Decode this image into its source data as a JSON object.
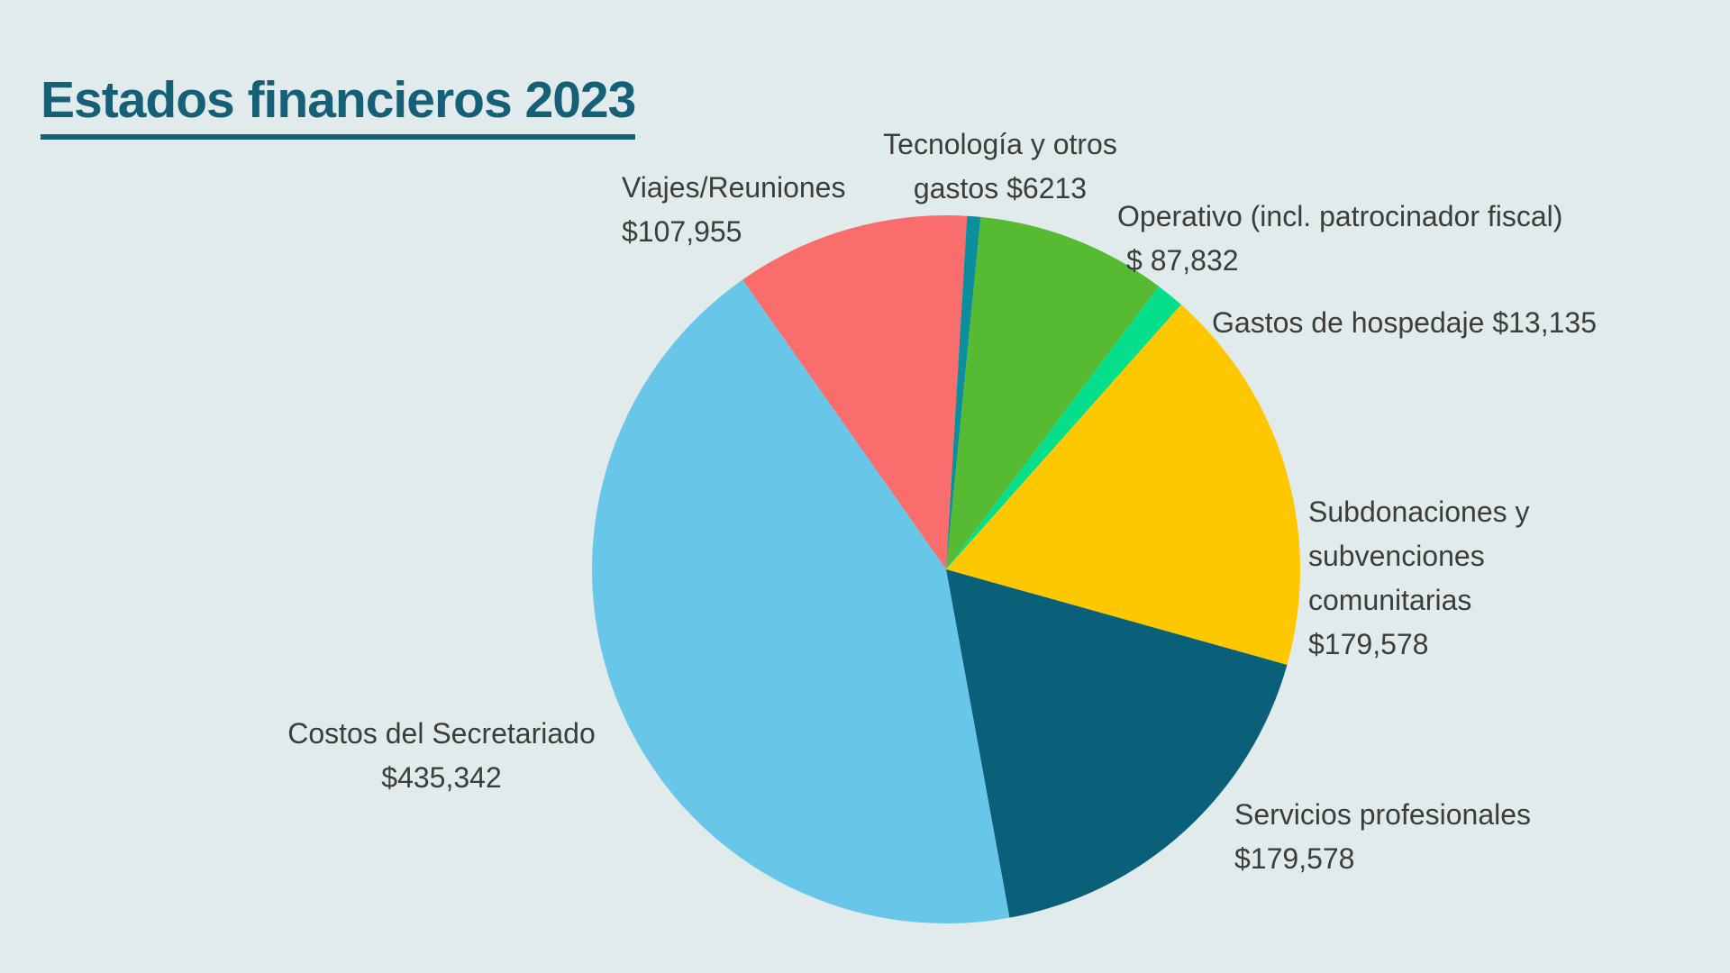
{
  "page": {
    "background_color": "#E1EBEC",
    "text_color": "#3C3C3C",
    "title_color": "#166077"
  },
  "header": {
    "title": "Estados financieros 2023"
  },
  "chart_data": {
    "type": "pie",
    "title": "Estados financieros 2023",
    "legend_position": "none",
    "labels_position": "outside",
    "total": 1009633,
    "start_angle_deg": -35.1,
    "direction": "clockwise",
    "slices": [
      {
        "id": "viajes-reuniones",
        "name": "Viajes/Reuniones",
        "value": 107955,
        "display_value": "$107,955",
        "percent": 10.69,
        "color": "#F96D6D",
        "label_lines": [
          "Viajes/Reuniones",
          "$107,955"
        ]
      },
      {
        "id": "tecnologia-otros-gastos",
        "name": "Tecnología y otros gastos",
        "value": 6213,
        "display_value": "$6213",
        "percent": 0.62,
        "color": "#0D8E9C",
        "label_lines": [
          "Tecnología y otros",
          "gastos $6213"
        ]
      },
      {
        "id": "operativo",
        "name": "Operativo (incl. patrocinador fiscal)",
        "value": 87832,
        "display_value": "$ 87,832",
        "percent": 8.7,
        "color": "#56BA32",
        "label_lines": [
          "Operativo (incl. patrocinador fiscal)",
          "$ 87,832"
        ]
      },
      {
        "id": "gastos-hospedaje",
        "name": "Gastos de hospedaje",
        "value": 13135,
        "display_value": "$13,135",
        "percent": 1.3,
        "color": "#05DF8B",
        "label_lines": [
          "Gastos de hospedaje $13,135"
        ]
      },
      {
        "id": "subdonaciones",
        "name": "Subdonaciones y subvenciones comunitarias",
        "value": 179578,
        "display_value": "$179,578",
        "percent": 17.79,
        "color": "#FDC800",
        "label_lines": [
          "Subdonaciones y",
          "subvenciones",
          "comunitarias",
          "$179,578"
        ]
      },
      {
        "id": "servicios-profesionales",
        "name": "Servicios profesionales",
        "value": 179578,
        "display_value": "$179,578",
        "percent": 17.79,
        "color": "#0A5F79",
        "label_lines": [
          "Servicios profesionales",
          "$179,578"
        ]
      },
      {
        "id": "costos-secretariado",
        "name": "Costos del Secretariado",
        "value": 435342,
        "display_value": "$435,342",
        "percent": 43.12,
        "color": "#68C7E9",
        "label_lines": [
          "Costos del Secretariado",
          "$435,342"
        ]
      }
    ]
  }
}
